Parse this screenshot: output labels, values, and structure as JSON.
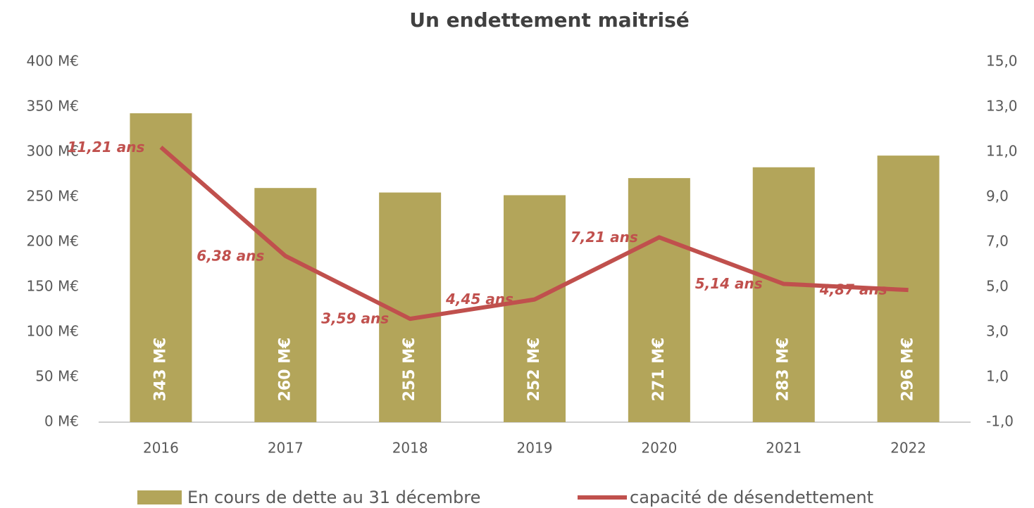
{
  "chart_data": {
    "type": "bar_line",
    "title": "Un endettement maitrisé",
    "categories": [
      "2016",
      "2017",
      "2018",
      "2019",
      "2020",
      "2021",
      "2022"
    ],
    "series": [
      {
        "name": "En cours de dette au 31 décembre",
        "type": "bar",
        "color": "#b3a55a",
        "values": [
          343,
          260,
          255,
          252,
          271,
          283,
          296
        ],
        "value_labels": [
          "343 M€",
          "260 M€",
          "255 M€",
          "252 M€",
          "271 M€",
          "283 M€",
          "296 M€"
        ]
      },
      {
        "name": "capacité de désendettement",
        "type": "line",
        "axis": "y2",
        "color": "#c0504d",
        "values": [
          11.21,
          6.38,
          3.59,
          4.45,
          7.21,
          5.14,
          4.87
        ],
        "value_labels": [
          "11,21 ans",
          "6,38 ans",
          "3,59 ans",
          "4,45 ans",
          "7,21 ans",
          "5,14 ans",
          "4,87 ans"
        ]
      }
    ],
    "ylim": [
      0,
      400
    ],
    "yticks": [
      {
        "value": 0,
        "label": "0 M€"
      },
      {
        "value": 50,
        "label": "50 M€"
      },
      {
        "value": 100,
        "label": "100 M€"
      },
      {
        "value": 150,
        "label": "150 M€"
      },
      {
        "value": 200,
        "label": "200 M€"
      },
      {
        "value": 250,
        "label": "250 M€"
      },
      {
        "value": 300,
        "label": "300 M€"
      },
      {
        "value": 350,
        "label": "350 M€"
      },
      {
        "value": 400,
        "label": "400 M€"
      }
    ],
    "y2lim": [
      -1,
      15
    ],
    "y2ticks": [
      {
        "value": -1,
        "label": "-1,0"
      },
      {
        "value": 1,
        "label": "1,0"
      },
      {
        "value": 3,
        "label": "3,0"
      },
      {
        "value": 5,
        "label": "5,0"
      },
      {
        "value": 7,
        "label": "7,0"
      },
      {
        "value": 9,
        "label": "9,0"
      },
      {
        "value": 11,
        "label": "11,0"
      },
      {
        "value": 13,
        "label": "13,0"
      },
      {
        "value": 15,
        "label": "15,0"
      }
    ],
    "legend": "bottom"
  }
}
